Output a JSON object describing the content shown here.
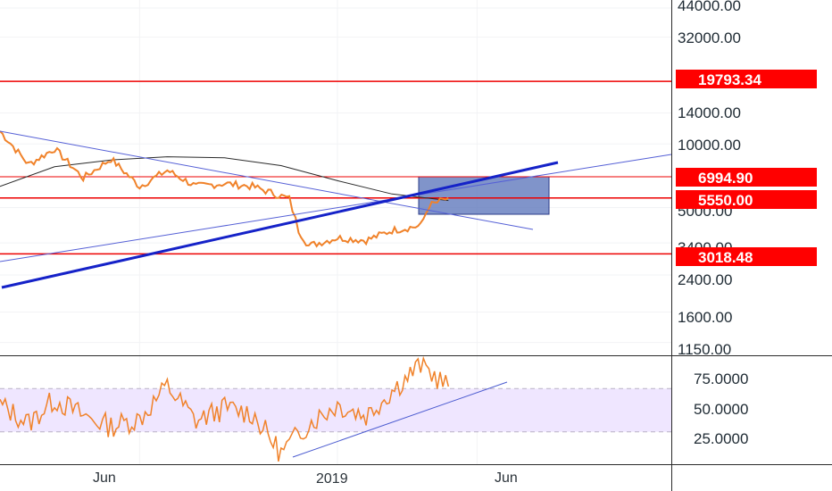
{
  "chart_data": [
    {
      "type": "line",
      "panel": "price",
      "scale": "log",
      "ylim": [
        1000,
        48000
      ],
      "y_ticks": [
        "44000.00",
        "32000.00",
        "14000.00",
        "10000.00",
        "5000.00",
        "3400.00",
        "2400.00",
        "1600.00",
        "1150.00"
      ],
      "x_ticks": [
        "Jun",
        "2019",
        "Jun"
      ],
      "price_tags": [
        {
          "label": "19793.34",
          "value": 19793.34
        },
        {
          "label": "6994.90",
          "value": 6994.9
        },
        {
          "label": "5550.00",
          "value": 5550
        },
        {
          "label": "3018.48",
          "value": 3018.48
        }
      ],
      "horizontal_levels": [
        19793.34,
        6994.9,
        5550,
        3018.48
      ],
      "price_series": {
        "x": [
          "2018-01",
          "2018-02",
          "2018-03",
          "2018-04",
          "2018-05",
          "2018-06",
          "2018-07",
          "2018-08",
          "2018-09",
          "2018-10",
          "2018-11-10",
          "2018-11-20",
          "2018-12",
          "2019-01",
          "2019-02",
          "2019-03",
          "2019-04-01",
          "2019-04-10",
          "2019-05"
        ],
        "values": [
          11500,
          8000,
          9500,
          6900,
          8500,
          6300,
          7500,
          6300,
          6500,
          6300,
          5500,
          3900,
          3300,
          3600,
          3500,
          3900,
          4100,
          5100,
          5550
        ]
      },
      "moving_average": {
        "x": [
          "2018-01",
          "2018-03",
          "2018-05",
          "2018-07",
          "2018-09",
          "2018-11",
          "2019-01",
          "2019-03",
          "2019-05"
        ],
        "values": [
          6300,
          7800,
          8400,
          8700,
          8600,
          7900,
          6700,
          5800,
          5400
        ]
      },
      "color": "#f0822a"
    },
    {
      "type": "line",
      "panel": "oscillator",
      "ylim": [
        0,
        100
      ],
      "y_ticks": [
        "75.0000",
        "50.0000",
        "25.0000"
      ],
      "band": [
        30,
        70
      ],
      "series": {
        "x": [
          "2018-01",
          "2018-02",
          "2018-03",
          "2018-04",
          "2018-05",
          "2018-06",
          "2018-07",
          "2018-08",
          "2018-09",
          "2018-10",
          "2018-11",
          "2018-12",
          "2019-01",
          "2019-02",
          "2019-03",
          "2019-04",
          "2019-05"
        ],
        "values": [
          55,
          38,
          60,
          45,
          35,
          42,
          72,
          40,
          52,
          47,
          10,
          38,
          55,
          45,
          68,
          92,
          72
        ]
      },
      "color": "#f0822a"
    }
  ]
}
